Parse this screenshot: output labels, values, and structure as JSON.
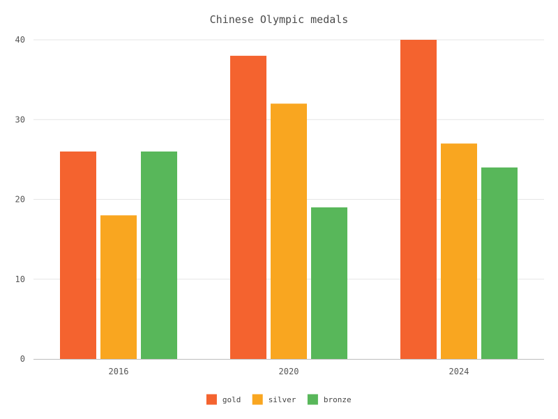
{
  "chart_data": {
    "type": "bar",
    "title": "Chinese Olympic medals",
    "categories": [
      "2016",
      "2020",
      "2024"
    ],
    "series": [
      {
        "name": "gold",
        "values": [
          26,
          38,
          40
        ],
        "color": "#f4632f"
      },
      {
        "name": "silver",
        "values": [
          18,
          32,
          27
        ],
        "color": "#f9a620"
      },
      {
        "name": "bronze",
        "values": [
          26,
          19,
          24
        ],
        "color": "#58b75a"
      }
    ],
    "ylim": [
      0,
      40
    ],
    "yticks": [
      0,
      10,
      20,
      30,
      40
    ],
    "grid": true,
    "legend_position": "bottom-center"
  }
}
